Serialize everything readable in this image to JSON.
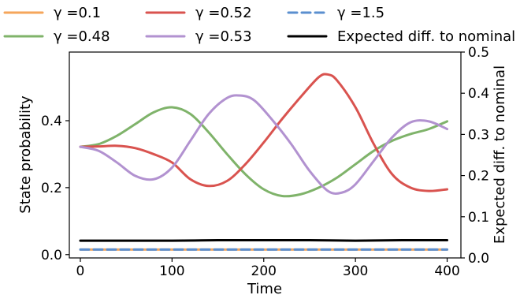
{
  "chart_data": {
    "type": "line",
    "xlabel": "Time",
    "ylabel": "State probability",
    "y2label": "Expected diff. to nominal",
    "xlim": [
      -12,
      415
    ],
    "ylim": [
      -0.01,
      0.605
    ],
    "y2lim": [
      0,
      0.5
    ],
    "xticks": [
      0,
      100,
      200,
      300,
      400
    ],
    "yticks": [
      0.0,
      0.2,
      0.4
    ],
    "y2ticks": [
      0.0,
      0.1,
      0.2,
      0.3,
      0.4,
      0.5
    ],
    "xtick_labels": [
      "0",
      "100",
      "200",
      "300",
      "400"
    ],
    "ytick_labels": [
      "0.0",
      "0.2",
      "0.4"
    ],
    "y2tick_labels": [
      "0.0",
      "0.1",
      "0.2",
      "0.3",
      "0.4",
      "0.5"
    ],
    "grid": false,
    "legend_position": "top, outside plot, 3 columns",
    "series": [
      {
        "name": "γ =0.1",
        "color": "#f5a65b",
        "dash": "solid",
        "axis": "left",
        "x": [
          0,
          50,
          100,
          150,
          200,
          250,
          300,
          350,
          400
        ],
        "y": [
          0.015,
          0.015,
          0.015,
          0.015,
          0.015,
          0.015,
          0.015,
          0.015,
          0.015
        ]
      },
      {
        "name": "γ =0.48",
        "color": "#7fb36a",
        "dash": "solid",
        "axis": "left",
        "x": [
          0,
          20,
          40,
          60,
          80,
          100,
          120,
          140,
          160,
          180,
          200,
          220,
          240,
          260,
          280,
          300,
          320,
          340,
          360,
          380,
          400
        ],
        "y": [
          0.322,
          0.33,
          0.355,
          0.39,
          0.425,
          0.44,
          0.42,
          0.365,
          0.3,
          0.24,
          0.195,
          0.175,
          0.18,
          0.2,
          0.23,
          0.27,
          0.31,
          0.34,
          0.36,
          0.375,
          0.398
        ]
      },
      {
        "name": "γ =0.52",
        "color": "#d9534f",
        "dash": "solid",
        "axis": "left",
        "x": [
          0,
          20,
          40,
          60,
          80,
          100,
          120,
          140,
          160,
          180,
          200,
          220,
          240,
          260,
          270,
          280,
          300,
          320,
          340,
          360,
          380,
          400
        ],
        "y": [
          0.322,
          0.323,
          0.325,
          0.318,
          0.3,
          0.275,
          0.225,
          0.205,
          0.22,
          0.27,
          0.335,
          0.405,
          0.47,
          0.53,
          0.538,
          0.52,
          0.44,
          0.33,
          0.24,
          0.2,
          0.19,
          0.195
        ]
      },
      {
        "name": "γ =0.53",
        "color": "#b292d0",
        "dash": "solid",
        "axis": "left",
        "x": [
          0,
          20,
          40,
          60,
          80,
          100,
          120,
          140,
          160,
          175,
          190,
          210,
          230,
          250,
          270,
          285,
          300,
          320,
          340,
          360,
          380,
          400
        ],
        "y": [
          0.322,
          0.31,
          0.275,
          0.235,
          0.225,
          0.26,
          0.34,
          0.42,
          0.468,
          0.475,
          0.46,
          0.4,
          0.33,
          0.25,
          0.19,
          0.185,
          0.21,
          0.28,
          0.35,
          0.395,
          0.398,
          0.375
        ]
      },
      {
        "name": "γ =1.5",
        "color": "#5b8fcf",
        "dash": "dashed",
        "axis": "left",
        "x": [
          0,
          50,
          100,
          150,
          200,
          250,
          300,
          350,
          400
        ],
        "y": [
          0.015,
          0.015,
          0.015,
          0.015,
          0.015,
          0.015,
          0.015,
          0.015,
          0.015
        ]
      },
      {
        "name": "Expected diff. to nominal",
        "color": "#000000",
        "dash": "solid",
        "axis": "right",
        "x": [
          0,
          50,
          100,
          150,
          200,
          250,
          300,
          350,
          400
        ],
        "y": [
          0.042,
          0.042,
          0.042,
          0.043,
          0.043,
          0.043,
          0.042,
          0.043,
          0.043
        ]
      }
    ]
  }
}
